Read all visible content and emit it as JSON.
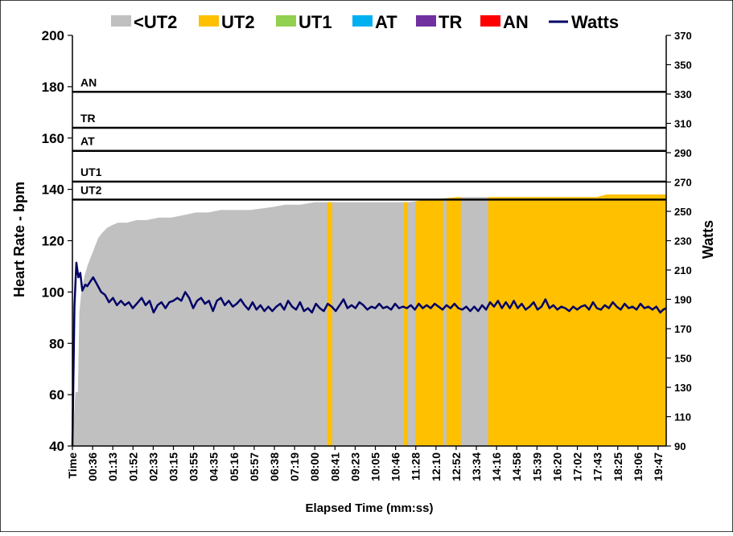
{
  "chart_data": {
    "type": "area",
    "title": "",
    "xlabel": "Elapsed Time (mm:ss)",
    "ylabel": "Heart Rate - bpm",
    "y2label": "Watts",
    "ylim": [
      40,
      200
    ],
    "y2lim": [
      90,
      370
    ],
    "xlim_seconds": [
      0,
      1200
    ],
    "yticks": [
      40,
      60,
      80,
      100,
      120,
      140,
      160,
      180,
      200
    ],
    "y2ticks": [
      90,
      110,
      130,
      150,
      170,
      190,
      210,
      230,
      250,
      270,
      290,
      310,
      330,
      350,
      370
    ],
    "xticks": [
      "Time",
      "00:36",
      "01:13",
      "01:52",
      "02:33",
      "03:15",
      "03:55",
      "04:35",
      "05:16",
      "05:57",
      "06:38",
      "07:19",
      "08:00",
      "08:41",
      "09:23",
      "10:05",
      "10:46",
      "11:28",
      "12:10",
      "12:52",
      "13:34",
      "14:16",
      "14:58",
      "15:39",
      "16:20",
      "17:02",
      "17:43",
      "18:25",
      "19:06",
      "19:47"
    ],
    "grid": false,
    "legend_position": "top",
    "legend": [
      {
        "label": "<UT2",
        "color": "#c0c0c0",
        "kind": "area"
      },
      {
        "label": "UT2",
        "color": "#ffc000",
        "kind": "area"
      },
      {
        "label": "UT1",
        "color": "#92d050",
        "kind": "area"
      },
      {
        "label": "AT",
        "color": "#00b0f0",
        "kind": "area"
      },
      {
        "label": "TR",
        "color": "#7030a0",
        "kind": "area"
      },
      {
        "label": "AN",
        "color": "#ff0000",
        "kind": "area"
      },
      {
        "label": "Watts",
        "color": "#000066",
        "kind": "line"
      }
    ],
    "zones": [
      {
        "label": "UT2",
        "hr": 136
      },
      {
        "label": "UT1",
        "hr": 143
      },
      {
        "label": "AT",
        "hr": 155
      },
      {
        "label": "TR",
        "hr": 164
      },
      {
        "label": "AN",
        "hr": 178
      }
    ],
    "heart_rate_series": {
      "name": "Heart Rate",
      "points": [
        [
          0,
          40
        ],
        [
          6,
          61
        ],
        [
          11,
          61
        ],
        [
          14,
          92
        ],
        [
          18,
          100
        ],
        [
          24,
          106
        ],
        [
          30,
          110
        ],
        [
          36,
          113
        ],
        [
          44,
          117
        ],
        [
          52,
          121
        ],
        [
          60,
          123
        ],
        [
          70,
          125
        ],
        [
          80,
          126
        ],
        [
          92,
          127
        ],
        [
          110,
          127
        ],
        [
          130,
          128
        ],
        [
          150,
          128
        ],
        [
          175,
          129
        ],
        [
          200,
          129
        ],
        [
          225,
          130
        ],
        [
          250,
          131
        ],
        [
          275,
          131
        ],
        [
          300,
          132
        ],
        [
          330,
          132
        ],
        [
          360,
          132
        ],
        [
          400,
          133
        ],
        [
          430,
          134
        ],
        [
          460,
          134
        ],
        [
          490,
          135
        ],
        [
          520,
          135
        ],
        [
          560,
          135
        ],
        [
          600,
          135
        ],
        [
          640,
          135
        ],
        [
          680,
          135
        ],
        [
          720,
          136
        ],
        [
          780,
          137
        ],
        [
          840,
          137
        ],
        [
          900,
          137
        ],
        [
          960,
          137
        ],
        [
          1020,
          137
        ],
        [
          1060,
          137
        ],
        [
          1080,
          138
        ],
        [
          1120,
          138
        ],
        [
          1160,
          138
        ],
        [
          1200,
          138
        ]
      ]
    },
    "zone_bands": [
      {
        "zone": "UT2",
        "from": 515,
        "to": 525
      },
      {
        "zone": "UT2",
        "from": 670,
        "to": 678
      },
      {
        "zone": "UT2",
        "from": 693,
        "to": 749
      },
      {
        "zone": "UT2",
        "from": 756,
        "to": 785
      },
      {
        "zone": "UT2",
        "from": 840,
        "to": 1200
      }
    ],
    "watts_series": {
      "name": "Watts",
      "points": [
        [
          0,
          90
        ],
        [
          4,
          185
        ],
        [
          8,
          215
        ],
        [
          12,
          205
        ],
        [
          16,
          208
        ],
        [
          20,
          196
        ],
        [
          26,
          200
        ],
        [
          30,
          199
        ],
        [
          36,
          202
        ],
        [
          42,
          205
        ],
        [
          50,
          200
        ],
        [
          58,
          195
        ],
        [
          66,
          193
        ],
        [
          74,
          188
        ],
        [
          82,
          191
        ],
        [
          90,
          186
        ],
        [
          98,
          189
        ],
        [
          106,
          186
        ],
        [
          114,
          188
        ],
        [
          122,
          184
        ],
        [
          130,
          187
        ],
        [
          140,
          191
        ],
        [
          148,
          186
        ],
        [
          156,
          189
        ],
        [
          164,
          181
        ],
        [
          172,
          186
        ],
        [
          180,
          188
        ],
        [
          188,
          184
        ],
        [
          196,
          188
        ],
        [
          204,
          189
        ],
        [
          212,
          191
        ],
        [
          220,
          189
        ],
        [
          228,
          195
        ],
        [
          236,
          191
        ],
        [
          244,
          184
        ],
        [
          252,
          189
        ],
        [
          260,
          191
        ],
        [
          268,
          187
        ],
        [
          276,
          189
        ],
        [
          284,
          182
        ],
        [
          292,
          189
        ],
        [
          300,
          191
        ],
        [
          308,
          186
        ],
        [
          316,
          189
        ],
        [
          324,
          185
        ],
        [
          332,
          187
        ],
        [
          340,
          190
        ],
        [
          348,
          186
        ],
        [
          356,
          183
        ],
        [
          364,
          188
        ],
        [
          372,
          183
        ],
        [
          380,
          186
        ],
        [
          388,
          182
        ],
        [
          396,
          185
        ],
        [
          404,
          182
        ],
        [
          412,
          185
        ],
        [
          420,
          187
        ],
        [
          428,
          183
        ],
        [
          436,
          189
        ],
        [
          444,
          185
        ],
        [
          452,
          183
        ],
        [
          460,
          188
        ],
        [
          468,
          182
        ],
        [
          476,
          184
        ],
        [
          484,
          181
        ],
        [
          492,
          187
        ],
        [
          500,
          184
        ],
        [
          508,
          182
        ],
        [
          516,
          187
        ],
        [
          524,
          185
        ],
        [
          532,
          182
        ],
        [
          540,
          186
        ],
        [
          548,
          190
        ],
        [
          556,
          184
        ],
        [
          564,
          186
        ],
        [
          572,
          184
        ],
        [
          580,
          188
        ],
        [
          588,
          186
        ],
        [
          596,
          183
        ],
        [
          604,
          185
        ],
        [
          612,
          184
        ],
        [
          620,
          187
        ],
        [
          628,
          184
        ],
        [
          636,
          185
        ],
        [
          644,
          183
        ],
        [
          652,
          187
        ],
        [
          660,
          184
        ],
        [
          668,
          185
        ],
        [
          676,
          184
        ],
        [
          684,
          186
        ],
        [
          692,
          183
        ],
        [
          700,
          187
        ],
        [
          708,
          184
        ],
        [
          716,
          186
        ],
        [
          724,
          184
        ],
        [
          732,
          187
        ],
        [
          740,
          185
        ],
        [
          748,
          183
        ],
        [
          756,
          186
        ],
        [
          764,
          184
        ],
        [
          772,
          187
        ],
        [
          780,
          184
        ],
        [
          788,
          183
        ],
        [
          796,
          185
        ],
        [
          804,
          182
        ],
        [
          812,
          185
        ],
        [
          820,
          182
        ],
        [
          828,
          186
        ],
        [
          836,
          183
        ],
        [
          844,
          188
        ],
        [
          852,
          185
        ],
        [
          860,
          189
        ],
        [
          868,
          184
        ],
        [
          876,
          188
        ],
        [
          884,
          184
        ],
        [
          892,
          189
        ],
        [
          900,
          184
        ],
        [
          908,
          187
        ],
        [
          916,
          183
        ],
        [
          924,
          185
        ],
        [
          932,
          188
        ],
        [
          940,
          183
        ],
        [
          948,
          185
        ],
        [
          956,
          190
        ],
        [
          964,
          184
        ],
        [
          972,
          186
        ],
        [
          980,
          183
        ],
        [
          988,
          185
        ],
        [
          996,
          184
        ],
        [
          1004,
          182
        ],
        [
          1012,
          185
        ],
        [
          1020,
          183
        ],
        [
          1028,
          185
        ],
        [
          1036,
          186
        ],
        [
          1044,
          183
        ],
        [
          1052,
          188
        ],
        [
          1060,
          184
        ],
        [
          1068,
          183
        ],
        [
          1076,
          186
        ],
        [
          1084,
          184
        ],
        [
          1092,
          188
        ],
        [
          1100,
          185
        ],
        [
          1108,
          183
        ],
        [
          1116,
          187
        ],
        [
          1124,
          184
        ],
        [
          1132,
          185
        ],
        [
          1140,
          183
        ],
        [
          1148,
          187
        ],
        [
          1156,
          184
        ],
        [
          1164,
          185
        ],
        [
          1172,
          183
        ],
        [
          1180,
          185
        ],
        [
          1188,
          181
        ],
        [
          1194,
          183
        ],
        [
          1200,
          184
        ]
      ]
    }
  }
}
